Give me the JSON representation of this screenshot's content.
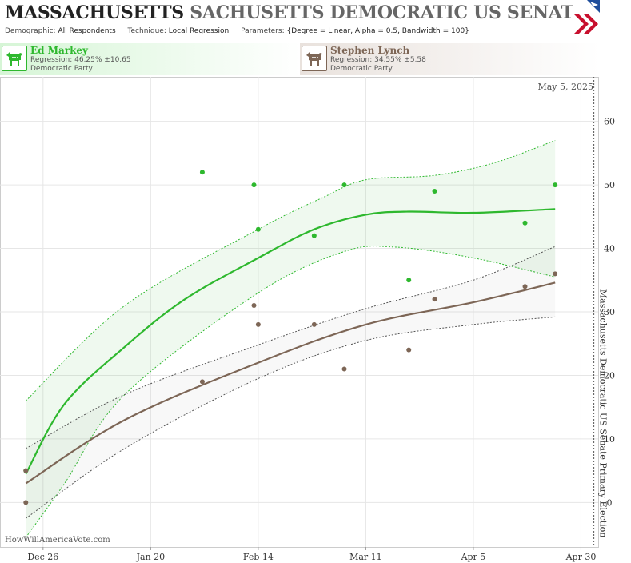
{
  "header": {
    "state": "MASSACHUSETTS",
    "race": "SACHUSETTS DEMOCRATIC US SENATE PRIM",
    "params": [
      {
        "label": "Demographic:",
        "value": "All Respondents"
      },
      {
        "label": "Technique:",
        "value": "Local Regression"
      },
      {
        "label": "Parameters:",
        "value": "{Degree = Linear, Alpha = 0.5, Bandwidth = 100}"
      }
    ]
  },
  "candidates": [
    {
      "name": "Ed Markey",
      "regression": "Regression: 46.25% ±10.65",
      "party": "Democratic Party",
      "color": "#2eb82e",
      "icon": "donkey-icon"
    },
    {
      "name": "Stephen Lynch",
      "regression": "Regression: 34.55% ±5.58",
      "party": "Democratic Party",
      "color": "#7d6656",
      "icon": "donkey-icon"
    }
  ],
  "chart_data": {
    "type": "scatter",
    "date_label": "May 5, 2025",
    "vertical_label": "Massachusetts Democratic US Senate Primary Election",
    "watermark": "HowWillAmericaVote.com",
    "x_range": [
      "2024-12-16",
      "2025-05-04"
    ],
    "y_range": [
      -7,
      67
    ],
    "y_ticks": [
      0,
      10,
      20,
      30,
      40,
      50,
      60
    ],
    "x_ticks": [
      {
        "date": "2024-12-26",
        "label": "Dec 26"
      },
      {
        "date": "2025-01-20",
        "label": "Jan 20"
      },
      {
        "date": "2025-02-14",
        "label": "Feb 14"
      },
      {
        "date": "2025-03-11",
        "label": "Mar 11"
      },
      {
        "date": "2025-04-05",
        "label": "Apr 5"
      },
      {
        "date": "2025-04-30",
        "label": "Apr 30"
      }
    ],
    "election_date": "2025-05-03",
    "series": [
      {
        "name": "Ed Markey",
        "color": "#2eb82e",
        "points": [
          {
            "x": "2024-12-22",
            "y": 5
          },
          {
            "x": "2025-02-01",
            "y": 52
          },
          {
            "x": "2025-02-13",
            "y": 50
          },
          {
            "x": "2025-02-14",
            "y": 43
          },
          {
            "x": "2025-02-27",
            "y": 42
          },
          {
            "x": "2025-03-06",
            "y": 50
          },
          {
            "x": "2025-03-21",
            "y": 35
          },
          {
            "x": "2025-03-27",
            "y": 49
          },
          {
            "x": "2025-04-17",
            "y": 44
          },
          {
            "x": "2025-04-24",
            "y": 50
          }
        ],
        "trend": [
          {
            "x": "2024-12-22",
            "y": 4.5
          },
          {
            "x": "2024-12-31",
            "y": 15.5
          },
          {
            "x": "2025-01-14",
            "y": 24.5
          },
          {
            "x": "2025-01-28",
            "y": 32
          },
          {
            "x": "2025-02-14",
            "y": 38.5
          },
          {
            "x": "2025-02-27",
            "y": 43
          },
          {
            "x": "2025-03-11",
            "y": 45.3
          },
          {
            "x": "2025-03-21",
            "y": 45.8
          },
          {
            "x": "2025-04-05",
            "y": 45.6
          },
          {
            "x": "2025-04-24",
            "y": 46.2
          }
        ],
        "upper": [
          {
            "x": "2024-12-22",
            "y": 16
          },
          {
            "x": "2025-01-14",
            "y": 31
          },
          {
            "x": "2025-02-14",
            "y": 43
          },
          {
            "x": "2025-03-01",
            "y": 48
          },
          {
            "x": "2025-03-11",
            "y": 50.8
          },
          {
            "x": "2025-03-27",
            "y": 51.5
          },
          {
            "x": "2025-04-10",
            "y": 53.5
          },
          {
            "x": "2025-04-24",
            "y": 57
          }
        ],
        "lower": [
          {
            "x": "2024-12-22",
            "y": -5.5
          },
          {
            "x": "2024-12-31",
            "y": 3
          },
          {
            "x": "2025-01-14",
            "y": 17
          },
          {
            "x": "2025-02-14",
            "y": 33
          },
          {
            "x": "2025-03-06",
            "y": 39.5
          },
          {
            "x": "2025-03-18",
            "y": 40.2
          },
          {
            "x": "2025-04-05",
            "y": 38.5
          },
          {
            "x": "2025-04-24",
            "y": 35.5
          }
        ]
      },
      {
        "name": "Stephen Lynch",
        "color": "#7d6656",
        "points": [
          {
            "x": "2024-12-22",
            "y": 0
          },
          {
            "x": "2024-12-22",
            "y": 5
          },
          {
            "x": "2025-02-01",
            "y": 19
          },
          {
            "x": "2025-02-13",
            "y": 31
          },
          {
            "x": "2025-02-14",
            "y": 28
          },
          {
            "x": "2025-02-27",
            "y": 28
          },
          {
            "x": "2025-03-06",
            "y": 21
          },
          {
            "x": "2025-03-21",
            "y": 24
          },
          {
            "x": "2025-03-27",
            "y": 32
          },
          {
            "x": "2025-04-17",
            "y": 34
          },
          {
            "x": "2025-04-24",
            "y": 36
          }
        ],
        "trend": [
          {
            "x": "2024-12-22",
            "y": 3
          },
          {
            "x": "2025-01-14",
            "y": 13
          },
          {
            "x": "2025-02-14",
            "y": 22
          },
          {
            "x": "2025-03-11",
            "y": 28
          },
          {
            "x": "2025-04-05",
            "y": 31.5
          },
          {
            "x": "2025-04-24",
            "y": 34.6
          }
        ],
        "upper": [
          {
            "x": "2024-12-22",
            "y": 8.5
          },
          {
            "x": "2025-01-14",
            "y": 17
          },
          {
            "x": "2025-02-14",
            "y": 24.8
          },
          {
            "x": "2025-03-11",
            "y": 30.5
          },
          {
            "x": "2025-04-05",
            "y": 35
          },
          {
            "x": "2025-04-24",
            "y": 40.3
          }
        ],
        "lower": [
          {
            "x": "2024-12-22",
            "y": -2.5
          },
          {
            "x": "2025-01-14",
            "y": 8.5
          },
          {
            "x": "2025-02-14",
            "y": 19.5
          },
          {
            "x": "2025-03-11",
            "y": 25.5
          },
          {
            "x": "2025-04-05",
            "y": 28
          },
          {
            "x": "2025-04-24",
            "y": 29.2
          }
        ]
      }
    ]
  }
}
